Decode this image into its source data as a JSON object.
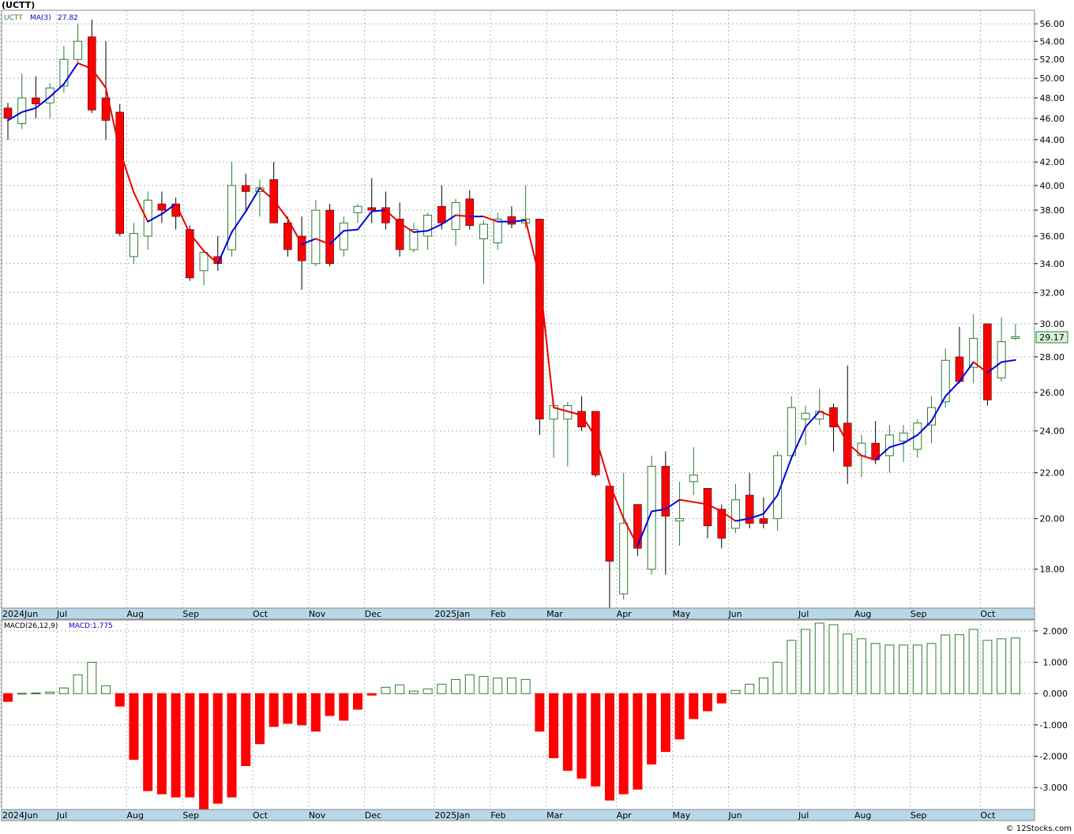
{
  "title": "(UCTT)",
  "footer": "© 12Stocks.com",
  "colors": {
    "up": "#2e7d32",
    "down": "#ff0000",
    "ma_up": "#0000dd",
    "ma_down": "#ee0000",
    "price_label_bg": "#d7f3d7",
    "axis_band": "#b8d8e8",
    "grid": "#b3b3b3"
  },
  "chart_data": [
    {
      "type": "candlestick",
      "legend": {
        "symbol": "UCTT",
        "ma_label": "MA(3)",
        "ma_value": "27.82"
      },
      "last_price": "29.17",
      "y_scale": "log",
      "ylim": [
        16.6,
        57.6
      ],
      "y_ticks": [
        "18.00",
        "20.00",
        "22.00",
        "24.00",
        "26.00",
        "28.00",
        "30.00",
        "32.00",
        "34.00",
        "36.00",
        "38.00",
        "40.00",
        "42.00",
        "44.00",
        "46.00",
        "48.00",
        "50.00",
        "52.00",
        "54.00",
        "56.00"
      ],
      "x_labels": [
        {
          "label": "2024Jun",
          "week": 0
        },
        {
          "label": "Jul",
          "week": 4
        },
        {
          "label": "Aug",
          "week": 9
        },
        {
          "label": "Sep",
          "week": 13
        },
        {
          "label": "Oct",
          "week": 18
        },
        {
          "label": "Nov",
          "week": 22
        },
        {
          "label": "Dec",
          "week": 26
        },
        {
          "label": "2025Jan",
          "week": 31
        },
        {
          "label": "Feb",
          "week": 35
        },
        {
          "label": "Mar",
          "week": 39
        },
        {
          "label": "Apr",
          "week": 44
        },
        {
          "label": "May",
          "week": 48
        },
        {
          "label": "Jun",
          "week": 52
        },
        {
          "label": "Jul",
          "week": 57
        },
        {
          "label": "Aug",
          "week": 61
        },
        {
          "label": "Sep",
          "week": 65
        },
        {
          "label": "Oct",
          "week": 70
        }
      ],
      "candles": [
        [
          47.0,
          47.5,
          44.0,
          46.0
        ],
        [
          45.5,
          50.5,
          45.0,
          48.0
        ],
        [
          48.0,
          50.2,
          46.0,
          47.4
        ],
        [
          47.5,
          49.5,
          46.0,
          49.0
        ],
        [
          49.2,
          53.5,
          48.5,
          52.0
        ],
        [
          52.0,
          56.0,
          51.5,
          54.0
        ],
        [
          54.5,
          56.5,
          46.5,
          46.8
        ],
        [
          48.0,
          54.0,
          44.0,
          45.8
        ],
        [
          46.6,
          47.4,
          36.0,
          36.2
        ],
        [
          34.5,
          37.0,
          34.0,
          36.2
        ],
        [
          36.0,
          39.5,
          35.0,
          38.8
        ],
        [
          38.5,
          39.5,
          37.0,
          38.0
        ],
        [
          38.5,
          39.0,
          36.5,
          37.5
        ],
        [
          36.5,
          36.8,
          32.8,
          33.0
        ],
        [
          33.5,
          35.0,
          32.5,
          34.8
        ],
        [
          34.5,
          36.0,
          33.5,
          34.0
        ],
        [
          35.0,
          42.0,
          34.5,
          40.0
        ],
        [
          40.0,
          41.0,
          38.0,
          39.5
        ],
        [
          39.5,
          40.5,
          37.5,
          39.8
        ],
        [
          40.5,
          42.0,
          37.0,
          37.0
        ],
        [
          37.0,
          37.5,
          34.5,
          35.0
        ],
        [
          36.0,
          37.5,
          32.2,
          34.2
        ],
        [
          34.0,
          38.8,
          33.8,
          38.0
        ],
        [
          38.0,
          38.5,
          33.8,
          34.0
        ],
        [
          35.0,
          37.5,
          34.5,
          37.0
        ],
        [
          37.8,
          38.5,
          37.0,
          38.3
        ],
        [
          38.2,
          40.6,
          37.0,
          38.0
        ],
        [
          38.2,
          39.5,
          36.5,
          37.0
        ],
        [
          37.3,
          38.6,
          34.5,
          35.0
        ],
        [
          35.0,
          37.0,
          34.8,
          36.5
        ],
        [
          36.0,
          37.8,
          35.0,
          37.6
        ],
        [
          38.3,
          40.0,
          36.5,
          37.0
        ],
        [
          36.5,
          38.9,
          35.3,
          38.6
        ],
        [
          38.9,
          39.6,
          36.5,
          36.8
        ],
        [
          35.8,
          37.2,
          32.6,
          36.9
        ],
        [
          35.5,
          37.8,
          35.0,
          37.3
        ],
        [
          37.5,
          38.3,
          36.6,
          36.9
        ],
        [
          37.0,
          40.0,
          36.6,
          37.3
        ],
        [
          37.3,
          37.3,
          23.8,
          24.6
        ],
        [
          24.6,
          25.5,
          22.7,
          25.3
        ],
        [
          24.6,
          25.5,
          22.3,
          25.3
        ],
        [
          25.0,
          25.8,
          24.0,
          24.2
        ],
        [
          25.0,
          25.0,
          21.8,
          21.9
        ],
        [
          21.4,
          21.4,
          16.6,
          18.3
        ],
        [
          17.1,
          22.0,
          16.9,
          19.8
        ],
        [
          20.6,
          20.6,
          18.5,
          18.8
        ],
        [
          18.0,
          22.8,
          17.8,
          22.3
        ],
        [
          22.3,
          23.0,
          17.8,
          20.1
        ],
        [
          19.9,
          21.6,
          18.9,
          20.0
        ],
        [
          21.6,
          23.2,
          21.0,
          21.9
        ],
        [
          21.3,
          21.3,
          19.2,
          19.7
        ],
        [
          20.4,
          20.6,
          18.8,
          19.2
        ],
        [
          19.6,
          21.5,
          19.4,
          20.8
        ],
        [
          21.0,
          22.0,
          19.6,
          19.8
        ],
        [
          20.0,
          20.9,
          19.6,
          19.8
        ],
        [
          20.0,
          23.0,
          19.5,
          22.8
        ],
        [
          22.8,
          25.8,
          22.6,
          25.2
        ],
        [
          24.6,
          25.3,
          23.3,
          24.9
        ],
        [
          24.6,
          26.2,
          24.3,
          25.0
        ],
        [
          25.2,
          25.4,
          23.0,
          24.2
        ],
        [
          24.4,
          27.5,
          21.5,
          22.3
        ],
        [
          22.8,
          23.8,
          21.8,
          23.4
        ],
        [
          23.4,
          24.5,
          22.4,
          22.6
        ],
        [
          22.8,
          24.3,
          22.0,
          23.8
        ],
        [
          23.5,
          24.3,
          22.5,
          23.9
        ],
        [
          23.1,
          24.6,
          22.7,
          24.4
        ],
        [
          24.3,
          25.8,
          23.4,
          25.2
        ],
        [
          25.5,
          28.5,
          25.2,
          27.8
        ],
        [
          28.0,
          29.8,
          26.5,
          26.6
        ],
        [
          27.4,
          30.6,
          26.5,
          29.1
        ],
        [
          30.0,
          30.0,
          25.3,
          25.6
        ],
        [
          26.8,
          30.4,
          26.6,
          28.9
        ],
        [
          29.1,
          30.0,
          29.0,
          29.2
        ]
      ],
      "ma3": [
        45.8,
        46.6,
        47.0,
        48.1,
        49.4,
        51.6,
        51.0,
        49.0,
        43.0,
        39.4,
        37.1,
        37.7,
        38.5,
        36.2,
        34.9,
        34.0,
        36.3,
        37.9,
        39.8,
        38.8,
        37.3,
        35.4,
        35.8,
        35.4,
        36.4,
        36.5,
        37.9,
        38.0,
        37.0,
        36.3,
        36.4,
        36.9,
        37.6,
        37.5,
        37.5,
        37.1,
        37.1,
        37.2,
        33.0,
        25.2,
        25.0,
        24.8,
        23.7,
        21.5,
        20.0,
        18.9,
        20.3,
        20.4,
        20.8,
        20.7,
        20.6,
        20.3,
        19.9,
        20.0,
        20.2,
        21.0,
        22.7,
        24.2,
        25.0,
        24.7,
        23.4,
        22.8,
        22.6,
        23.2,
        23.4,
        23.8,
        24.5,
        25.8,
        26.6,
        27.7,
        27.1,
        27.7,
        27.82
      ],
      "ma3_start": 0
    },
    {
      "type": "bar",
      "legend": {
        "label": "MACD(26,12,9)",
        "macd_label": "MACD:1.775"
      },
      "ylim": [
        -3.7,
        2.35
      ],
      "y_ticks": [
        "-3.000",
        "-2.000",
        "-1.000",
        "0.000",
        "1.000",
        "2.000"
      ],
      "values": [
        -0.25,
        0.01,
        0.02,
        0.05,
        0.18,
        0.6,
        1.0,
        0.25,
        -0.4,
        -2.1,
        -3.1,
        -3.2,
        -3.3,
        -3.3,
        -3.7,
        -3.5,
        -3.3,
        -2.3,
        -1.6,
        -1.05,
        -0.95,
        -1.0,
        -1.2,
        -0.7,
        -0.85,
        -0.5,
        -0.05,
        0.2,
        0.28,
        0.08,
        0.15,
        0.3,
        0.45,
        0.6,
        0.55,
        0.5,
        0.5,
        0.45,
        -1.2,
        -2.05,
        -2.45,
        -2.7,
        -2.95,
        -3.4,
        -3.2,
        -3.05,
        -2.25,
        -1.85,
        -1.45,
        -0.8,
        -0.55,
        -0.3,
        0.1,
        0.3,
        0.5,
        1.0,
        1.7,
        2.05,
        2.25,
        2.2,
        1.9,
        1.75,
        1.6,
        1.55,
        1.55,
        1.55,
        1.6,
        1.87,
        1.88,
        2.05,
        1.7,
        1.75,
        1.775
      ]
    }
  ]
}
